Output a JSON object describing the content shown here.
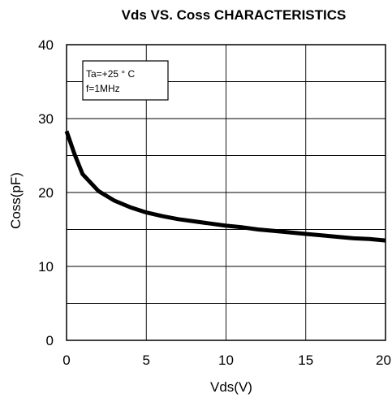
{
  "chart_data": {
    "type": "line",
    "title": "Vds  VS. Coss CHARACTERISTICS",
    "xlabel": "Vds(V)",
    "ylabel": "Coss(pF)",
    "xlim": [
      0,
      20
    ],
    "ylim": [
      0,
      40
    ],
    "x_ticks": [
      0,
      5,
      10,
      15,
      20
    ],
    "x_tick_labels": [
      "0",
      "5",
      "10",
      "15",
      "20"
    ],
    "y_ticks": [
      0,
      10,
      20,
      30,
      40
    ],
    "y_tick_labels": [
      "0",
      "10",
      "20",
      "30",
      "40"
    ],
    "y_grid_step": 5,
    "grid": true,
    "annotations": [
      "Ta=+25 ° C",
      "f=1MHz"
    ],
    "series": [
      {
        "x": [
          0,
          0.5,
          1,
          2,
          3,
          4,
          5,
          6,
          7,
          8,
          9,
          10,
          11,
          12,
          13,
          14,
          15,
          16,
          17,
          18,
          19,
          20
        ],
        "y": [
          28.3,
          25.2,
          22.5,
          20.2,
          18.9,
          18.0,
          17.3,
          16.8,
          16.4,
          16.1,
          15.8,
          15.5,
          15.3,
          15.0,
          14.8,
          14.6,
          14.4,
          14.2,
          14.0,
          13.8,
          13.7,
          13.5
        ]
      }
    ],
    "colors": {
      "line": "#000000",
      "grid": "#000000",
      "frame": "#000000"
    }
  }
}
